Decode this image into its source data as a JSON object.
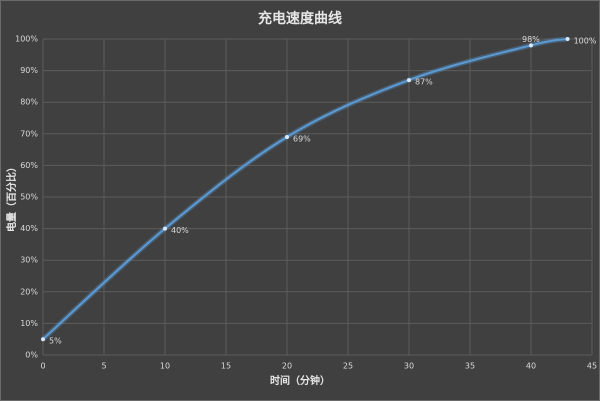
{
  "chart_data": {
    "type": "line",
    "title": "充电速度曲线",
    "x_label": "时间（分钟）",
    "y_label": "电量（百分比）",
    "x": [
      0,
      10,
      20,
      30,
      40,
      43
    ],
    "series": [
      {
        "name": "电量",
        "color": "#5b9bd5",
        "values": [
          5,
          40,
          69,
          87,
          98,
          100
        ],
        "value_labels": [
          "5%",
          "40%",
          "69%",
          "87%",
          "98%",
          "100%"
        ]
      }
    ],
    "xlim": [
      0,
      45
    ],
    "xticks": [
      0,
      5,
      10,
      15,
      20,
      25,
      30,
      35,
      40,
      45
    ],
    "ylim": [
      0,
      100
    ],
    "yticks": [
      {
        "value": 0,
        "label": "0%"
      },
      {
        "value": 10,
        "label": "10%"
      },
      {
        "value": 20,
        "label": "20%"
      },
      {
        "value": 30,
        "label": "30%"
      },
      {
        "value": 40,
        "label": "40%"
      },
      {
        "value": 50,
        "label": "50%"
      },
      {
        "value": 60,
        "label": "60%"
      },
      {
        "value": 70,
        "label": "70%"
      },
      {
        "value": 80,
        "label": "80%"
      },
      {
        "value": 90,
        "label": "90%"
      },
      {
        "value": 100,
        "label": "100%"
      }
    ],
    "grid": true
  }
}
